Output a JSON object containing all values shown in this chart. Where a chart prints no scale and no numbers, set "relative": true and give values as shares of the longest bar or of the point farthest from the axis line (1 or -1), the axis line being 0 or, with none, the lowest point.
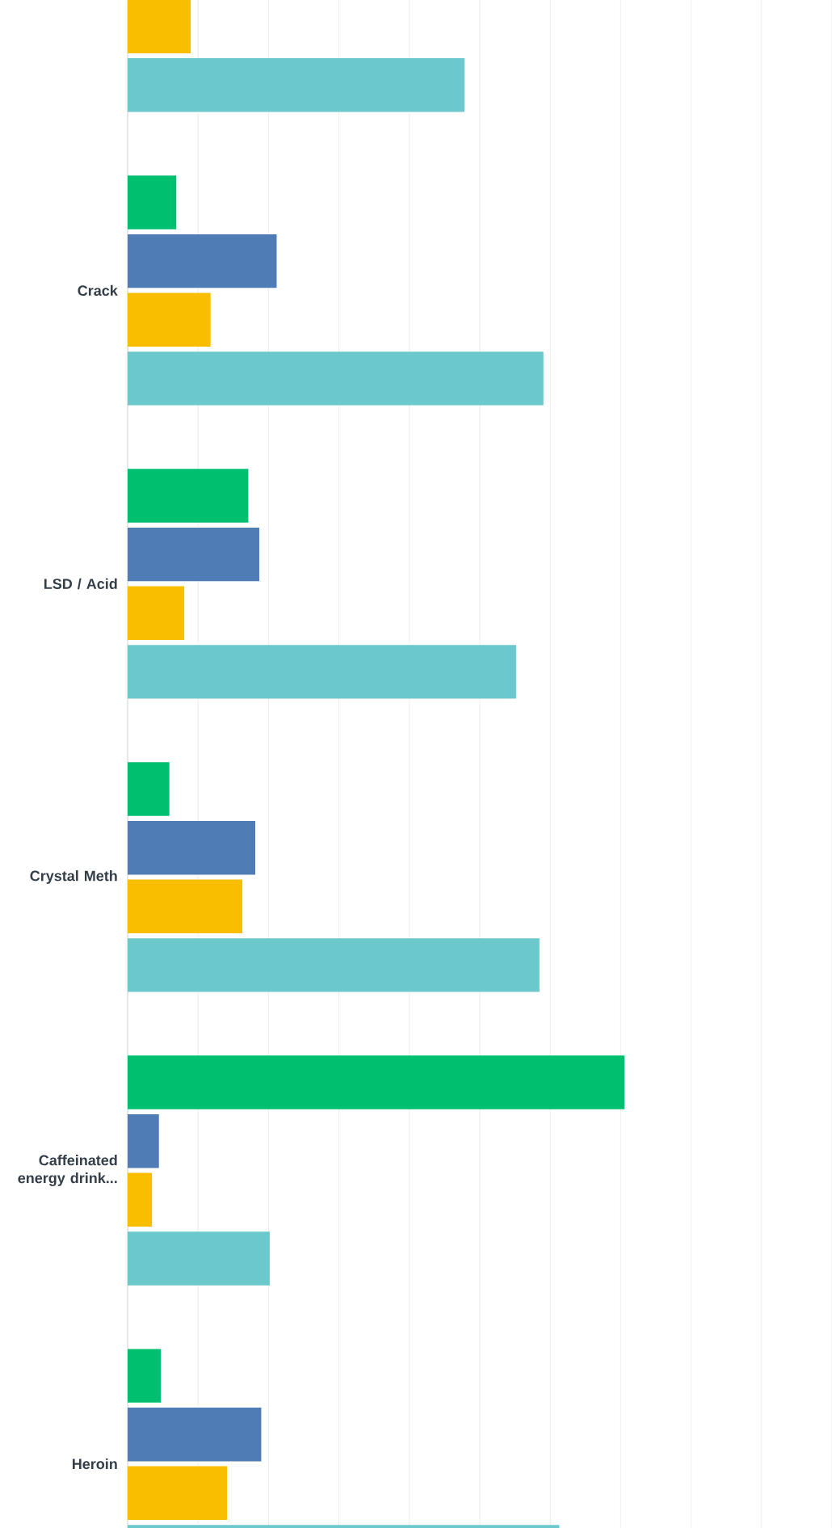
{
  "chart_data": {
    "type": "bar",
    "orientation": "horizontal",
    "relative": true,
    "grid": "x",
    "tick_labels": "y",
    "categories": [
      null,
      "Crack",
      "LSD / Acid",
      "Crystal Meth",
      "Caffeinated energy drink...",
      "Heroin"
    ],
    "series": [
      {
        "color": "#00bf6f",
        "values": [
          null,
          0.098,
          0.243,
          0.084,
          1,
          0.067
        ]
      },
      {
        "color": "#507cb6",
        "values": [
          null,
          0.3,
          0.265,
          0.257,
          0.063,
          0.269
        ]
      },
      {
        "color": "#f9be00",
        "values": [
          0.127,
          0.167,
          0.114,
          0.231,
          0.049,
          0.2
        ]
      },
      {
        "color": "#6bc8cd",
        "values": [
          0.678,
          0.837,
          0.782,
          0.829,
          0.286,
          0.869
        ]
      }
    ]
  }
}
